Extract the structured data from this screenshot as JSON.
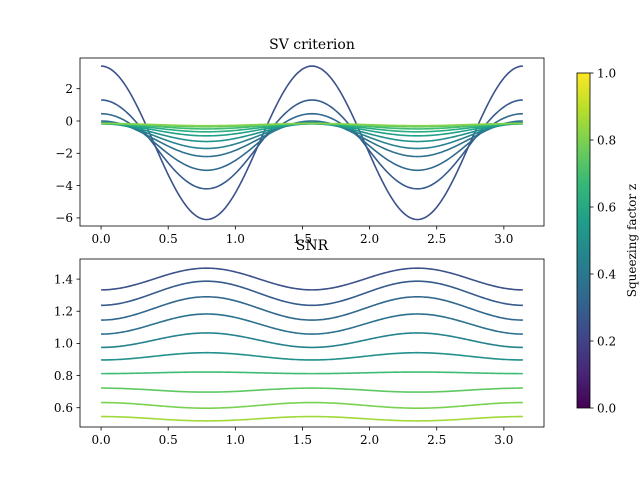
{
  "chart_data": [
    {
      "type": "line",
      "title": "SV criterion",
      "xlabel": "",
      "ylabel": "",
      "x_range": [
        0,
        3.14159
      ],
      "xlim": [
        -0.157,
        3.299
      ],
      "ylim": [
        -6.5,
        3.9
      ],
      "xticks": [
        0.0,
        0.5,
        1.0,
        1.5,
        2.0,
        2.5,
        3.0
      ],
      "xtick_labels": [
        "0.0",
        "0.5",
        "1.0",
        "1.5",
        "2.0",
        "2.5",
        "3.0"
      ],
      "yticks": [
        -6,
        -4,
        -2,
        0,
        2
      ],
      "ytick_labels": [
        "−6",
        "−4",
        "−2",
        "0",
        "2"
      ],
      "shape": "A + B*cos(4x)",
      "series": [
        {
          "z": 0.3,
          "color": "#3b528b",
          "A": -1.35,
          "B": 4.75
        },
        {
          "z": 0.35,
          "color": "#375b8d",
          "A": -1.45,
          "B": 2.75
        },
        {
          "z": 0.4,
          "color": "#31688e",
          "A": -1.3,
          "B": 1.75
        },
        {
          "z": 0.45,
          "color": "#2c718e",
          "A": -1.1,
          "B": 1.1
        },
        {
          "z": 0.5,
          "color": "#26828e",
          "A": -0.9,
          "B": 0.8
        },
        {
          "z": 0.55,
          "color": "#21918c",
          "A": -0.72,
          "B": 0.55
        },
        {
          "z": 0.6,
          "color": "#1fa088",
          "A": -0.55,
          "B": 0.37
        },
        {
          "z": 0.65,
          "color": "#28ae80",
          "A": -0.42,
          "B": 0.25
        },
        {
          "z": 0.7,
          "color": "#3fbc73",
          "A": -0.32,
          "B": 0.17
        },
        {
          "z": 0.75,
          "color": "#5ec962",
          "A": -0.26,
          "B": 0.1
        },
        {
          "z": 0.8,
          "color": "#84d44b",
          "A": -0.22,
          "B": 0.07
        }
      ]
    },
    {
      "type": "line",
      "title": "SNR",
      "xlabel": "",
      "ylabel": "",
      "x_range": [
        0,
        3.14159
      ],
      "xlim": [
        -0.157,
        3.299
      ],
      "ylim": [
        0.48,
        1.525
      ],
      "xticks": [
        0.0,
        0.5,
        1.0,
        1.5,
        2.0,
        2.5,
        3.0
      ],
      "xtick_labels": [
        "0.0",
        "0.5",
        "1.0",
        "1.5",
        "2.0",
        "2.5",
        "3.0"
      ],
      "yticks": [
        0.6,
        0.8,
        1.0,
        1.2,
        1.4
      ],
      "ytick_labels": [
        "0.6",
        "0.8",
        "1.0",
        "1.2",
        "1.4"
      ],
      "shape": "base + amp*(1 - cos(4x))/2",
      "series": [
        {
          "z": 0.3,
          "color": "#3b528b",
          "base": 1.333,
          "amp": 0.135
        },
        {
          "z": 0.35,
          "color": "#375b8d",
          "base": 1.237,
          "amp": 0.15
        },
        {
          "z": 0.4,
          "color": "#31688e",
          "base": 1.145,
          "amp": 0.145
        },
        {
          "z": 0.45,
          "color": "#2c718e",
          "base": 1.058,
          "amp": 0.125
        },
        {
          "z": 0.5,
          "color": "#26828e",
          "base": 0.975,
          "amp": 0.09
        },
        {
          "z": 0.55,
          "color": "#21918c",
          "base": 0.897,
          "amp": 0.045
        },
        {
          "z": 0.6,
          "color": "#3fbc73",
          "base": 0.812,
          "amp": 0.01
        },
        {
          "z": 0.65,
          "color": "#5ec962",
          "base": 0.722,
          "amp": -0.025
        },
        {
          "z": 0.7,
          "color": "#7ad151",
          "base": 0.632,
          "amp": -0.035
        },
        {
          "z": 0.75,
          "color": "#a0da39",
          "base": 0.545,
          "amp": -0.027
        }
      ]
    }
  ],
  "colorbar": {
    "label": "Squeezing factor z",
    "range": [
      0.0,
      1.0
    ],
    "colormap": "viridis",
    "stops": [
      "#440154",
      "#482878",
      "#3e4989",
      "#31688e",
      "#26828e",
      "#1f9e89",
      "#35b779",
      "#6ece58",
      "#b5de2b",
      "#fde725"
    ],
    "ticks": [
      0.0,
      0.2,
      0.4,
      0.6,
      0.8,
      1.0
    ],
    "tick_labels": [
      "0.0",
      "0.2",
      "0.4",
      "0.6",
      "0.8",
      "1.0"
    ]
  }
}
